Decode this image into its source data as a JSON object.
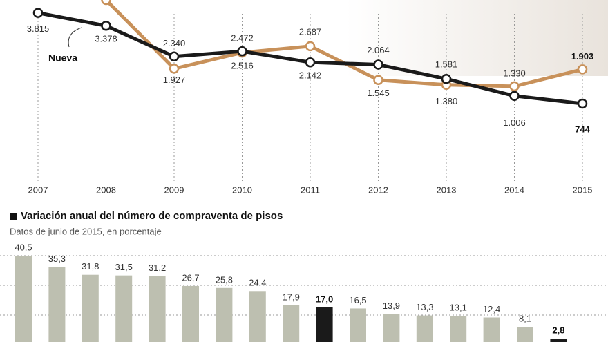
{
  "chart_data": [
    {
      "type": "line",
      "x": [
        "2007",
        "2008",
        "2009",
        "2010",
        "2011",
        "2012",
        "2013",
        "2014",
        "2015"
      ],
      "series": [
        {
          "name": "Nueva",
          "color": "#1a1a1a",
          "values": [
            3815,
            3378,
            2340,
            2516,
            2142,
            2064,
            1581,
            1006,
            744
          ],
          "value_labels": [
            "3.815",
            "3.378",
            "2.340",
            "2.516",
            "2.142",
            "2.064",
            "1.581",
            "1.006",
            "744"
          ]
        },
        {
          "color": "#c8915a",
          "values": [
            null,
            4250,
            1927,
            2472,
            2687,
            1545,
            1380,
            1330,
            1903
          ],
          "value_labels": [
            null,
            null,
            "1.927",
            "2.472",
            "2.687",
            "1.545",
            "1.380",
            "1.330",
            "1.903"
          ]
        }
      ]
    },
    {
      "type": "bar",
      "title": "Variación anual del número de compraventa de pisos",
      "subtitle": "Datos de junio de 2015, en porcentaje",
      "categories": [
        null,
        null,
        null,
        null,
        null,
        null,
        null,
        null,
        null,
        null,
        null,
        null,
        null,
        null,
        null,
        null,
        null
      ],
      "values": [
        40.5,
        35.3,
        31.8,
        31.5,
        31.2,
        26.7,
        25.8,
        24.4,
        17.9,
        17.0,
        16.5,
        13.9,
        13.3,
        13.1,
        12.4,
        8.1,
        2.8
      ],
      "value_labels": [
        "40,5",
        "35,3",
        "31,8",
        "31,5",
        "31,2",
        "26,7",
        "25,8",
        "24,4",
        "17,9",
        "17,0",
        "16,5",
        "13,9",
        "13,3",
        "13,1",
        "12,4",
        "8,1",
        "2,8"
      ],
      "colors": [
        "#bdbfb0",
        "#bdbfb0",
        "#bdbfb0",
        "#bdbfb0",
        "#bdbfb0",
        "#bdbfb0",
        "#bdbfb0",
        "#bdbfb0",
        "#bdbfb0",
        "#1a1a1a",
        "#bdbfb0",
        "#bdbfb0",
        "#bdbfb0",
        "#bdbfb0",
        "#bdbfb0",
        "#bdbfb0",
        "#1a1a1a"
      ]
    }
  ]
}
